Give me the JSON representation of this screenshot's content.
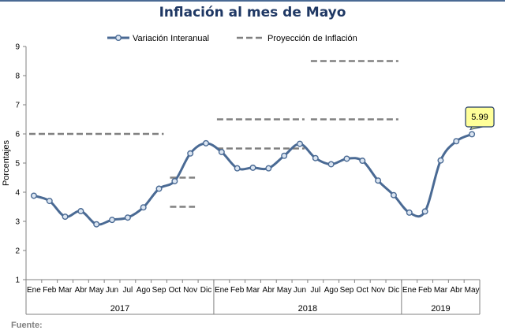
{
  "chart_data": {
    "type": "line",
    "title": "Inflación al mes de Mayo",
    "ylabel": "Porcentajes",
    "ylim": [
      1,
      9
    ],
    "yticks": [
      "1",
      "2",
      "3",
      "4",
      "5",
      "6",
      "7",
      "8",
      "9"
    ],
    "grid": false,
    "legend_position": "top",
    "categories": [
      "Ene",
      "Feb",
      "Mar",
      "Abr",
      "May",
      "Jun",
      "Jul",
      "Ago",
      "Sep",
      "Oct",
      "Nov",
      "Dic",
      "Ene",
      "Feb",
      "Mar",
      "Abr",
      "May",
      "Jun",
      "Jul",
      "Ago",
      "Sep",
      "Oct",
      "Nov",
      "Dic",
      "Ene",
      "Feb",
      "Mar",
      "Abr",
      "May"
    ],
    "years": [
      {
        "label": "2017",
        "months": 12
      },
      {
        "label": "2018",
        "months": 12
      },
      {
        "label": "2019",
        "months": 5
      }
    ],
    "series": [
      {
        "name": "Variación Interanual",
        "color": "#4A6A94",
        "marker_fill": "#DCE6F2",
        "values": [
          3.88,
          3.7,
          3.16,
          3.35,
          2.9,
          3.05,
          3.13,
          3.48,
          4.12,
          4.38,
          5.33,
          5.68,
          5.38,
          4.82,
          4.84,
          4.82,
          5.25,
          5.66,
          5.17,
          4.96,
          5.15,
          5.08,
          4.4,
          3.9,
          3.3,
          3.34,
          5.09,
          5.75,
          5.99
        ]
      },
      {
        "name": "Proyección de Inflación",
        "color": "#808080",
        "segments": [
          {
            "from": 0,
            "to": 8,
            "value": 6.0
          },
          {
            "from": 9,
            "to": 10,
            "value": 4.5
          },
          {
            "from": 9,
            "to": 10,
            "value": 3.5
          },
          {
            "from": 12,
            "to": 17,
            "value": 6.5
          },
          {
            "from": 12,
            "to": 17,
            "value": 5.5
          },
          {
            "from": 18,
            "to": 23,
            "value": 6.5
          },
          {
            "from": 18,
            "to": 23,
            "value": 8.5
          }
        ]
      }
    ],
    "annotations": [
      {
        "text": "5.99",
        "index": 28,
        "value": 5.99,
        "fill": "#FFFF99",
        "stroke": "#1F3864"
      }
    ]
  },
  "footer": {
    "source_label": "Fuente:"
  }
}
